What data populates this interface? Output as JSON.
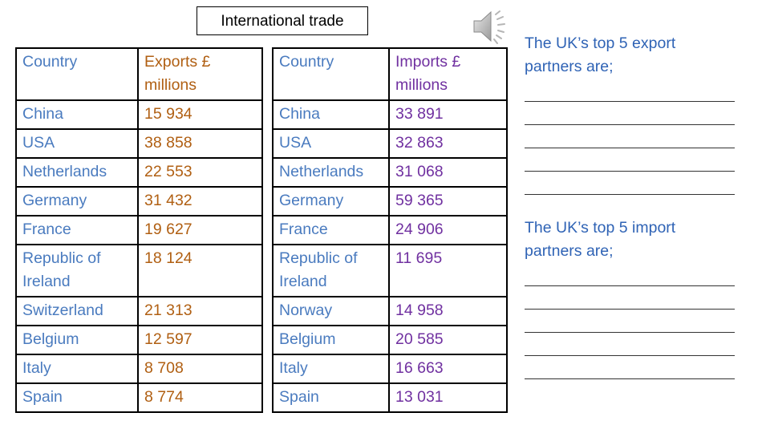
{
  "title": "International trade",
  "icons": {
    "audio": "speaker-icon"
  },
  "colors": {
    "country_text": "#4a7bbf",
    "exports_text": "#b05f12",
    "imports_text": "#7030a0",
    "side_text": "#2f63b5"
  },
  "exports_table": {
    "header": {
      "country": "Country",
      "value": "Exports £ millions"
    },
    "rows": [
      {
        "country": "China",
        "value": "15 934"
      },
      {
        "country": "USA",
        "value": "38 858"
      },
      {
        "country": "Netherlands",
        "value": "22 553"
      },
      {
        "country": "Germany",
        "value": "31 432"
      },
      {
        "country": "France",
        "value": "19 627"
      },
      {
        "country": "Republic of Ireland",
        "value": "18 124"
      },
      {
        "country": "Switzerland",
        "value": "21 313"
      },
      {
        "country": "Belgium",
        "value": "12 597"
      },
      {
        "country": "Italy",
        "value": "8 708"
      },
      {
        "country": "Spain",
        "value": "8 774"
      }
    ]
  },
  "imports_table": {
    "header": {
      "country": "Country",
      "value": "Imports £ millions"
    },
    "rows": [
      {
        "country": "China",
        "value": "33 891"
      },
      {
        "country": "USA",
        "value": "32 863"
      },
      {
        "country": "Netherlands",
        "value": "31 068"
      },
      {
        "country": "Germany",
        "value": "59 365"
      },
      {
        "country": "France",
        "value": "24 906"
      },
      {
        "country": "Republic of Ireland",
        "value": "11 695"
      },
      {
        "country": "Norway",
        "value": "14 958"
      },
      {
        "country": "Belgium",
        "value": "20 585"
      },
      {
        "country": "Italy",
        "value": "16 663"
      },
      {
        "country": "Spain",
        "value": "13 031"
      }
    ]
  },
  "side": {
    "export_prompt": "The UK’s top 5 export partners are;",
    "import_prompt": "The UK’s top 5 import partners are;"
  }
}
